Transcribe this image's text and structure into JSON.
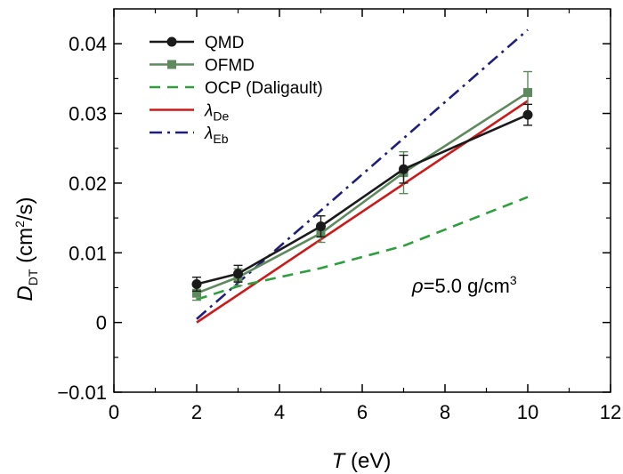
{
  "chart_data": {
    "type": "line",
    "xlabel": {
      "var": "T",
      "unit": " (eV)"
    },
    "ylabel": {
      "var": "D",
      "sub": "DT",
      "unit_pre": " (cm",
      "unit_sup": "2",
      "unit_post": "/s)"
    },
    "xlim": [
      0,
      12
    ],
    "ylim": [
      -0.01,
      0.045
    ],
    "x_ticks": [
      0,
      2,
      4,
      6,
      8,
      10,
      12
    ],
    "x_tick_labels": [
      "0",
      "2",
      "4",
      "6",
      "8",
      "10",
      "12"
    ],
    "y_ticks": [
      -0.01,
      0,
      0.01,
      0.02,
      0.03,
      0.04
    ],
    "y_tick_labels": [
      "−0.01",
      "0",
      "0.01",
      "0.02",
      "0.03",
      "0.04"
    ],
    "grid": false,
    "legend_position": "top-left",
    "annotation": {
      "pre": "ρ",
      "mid": "=5.0 g/cm",
      "sup": "3"
    },
    "series": [
      {
        "name": "QMD",
        "color": "#1a1a1a",
        "style": "solid",
        "marker": "circle",
        "x": [
          2,
          3,
          5,
          7,
          10
        ],
        "y": [
          0.0055,
          0.007,
          0.0138,
          0.022,
          0.0298
        ],
        "err": [
          0.001,
          0.0012,
          0.0015,
          0.002,
          0.0015
        ]
      },
      {
        "name": "OFMD",
        "color": "#5e8a5e",
        "style": "solid",
        "marker": "square",
        "x": [
          2,
          3,
          5,
          7,
          10
        ],
        "y": [
          0.0042,
          0.0065,
          0.0128,
          0.0215,
          0.033
        ],
        "err": [
          0.001,
          0.0012,
          0.0013,
          0.003,
          0.003
        ]
      },
      {
        "name": "OCP (Daligault)",
        "color": "#2e9e3e",
        "style": "dashed",
        "marker": "none",
        "x": [
          2,
          3,
          5,
          7,
          10
        ],
        "y": [
          0.0033,
          0.0052,
          0.0078,
          0.011,
          0.018
        ]
      },
      {
        "name_main": "λ",
        "name_sub": "De",
        "color": "#cc1a1a",
        "style": "solid",
        "marker": "none",
        "x": [
          2,
          10
        ],
        "y": [
          0.0,
          0.0318
        ]
      },
      {
        "name_main": "λ",
        "name_sub": "Eb",
        "color": "#1f1f7a",
        "style": "dashdot",
        "marker": "none",
        "x": [
          2,
          10
        ],
        "y": [
          0.0005,
          0.042
        ]
      }
    ]
  }
}
